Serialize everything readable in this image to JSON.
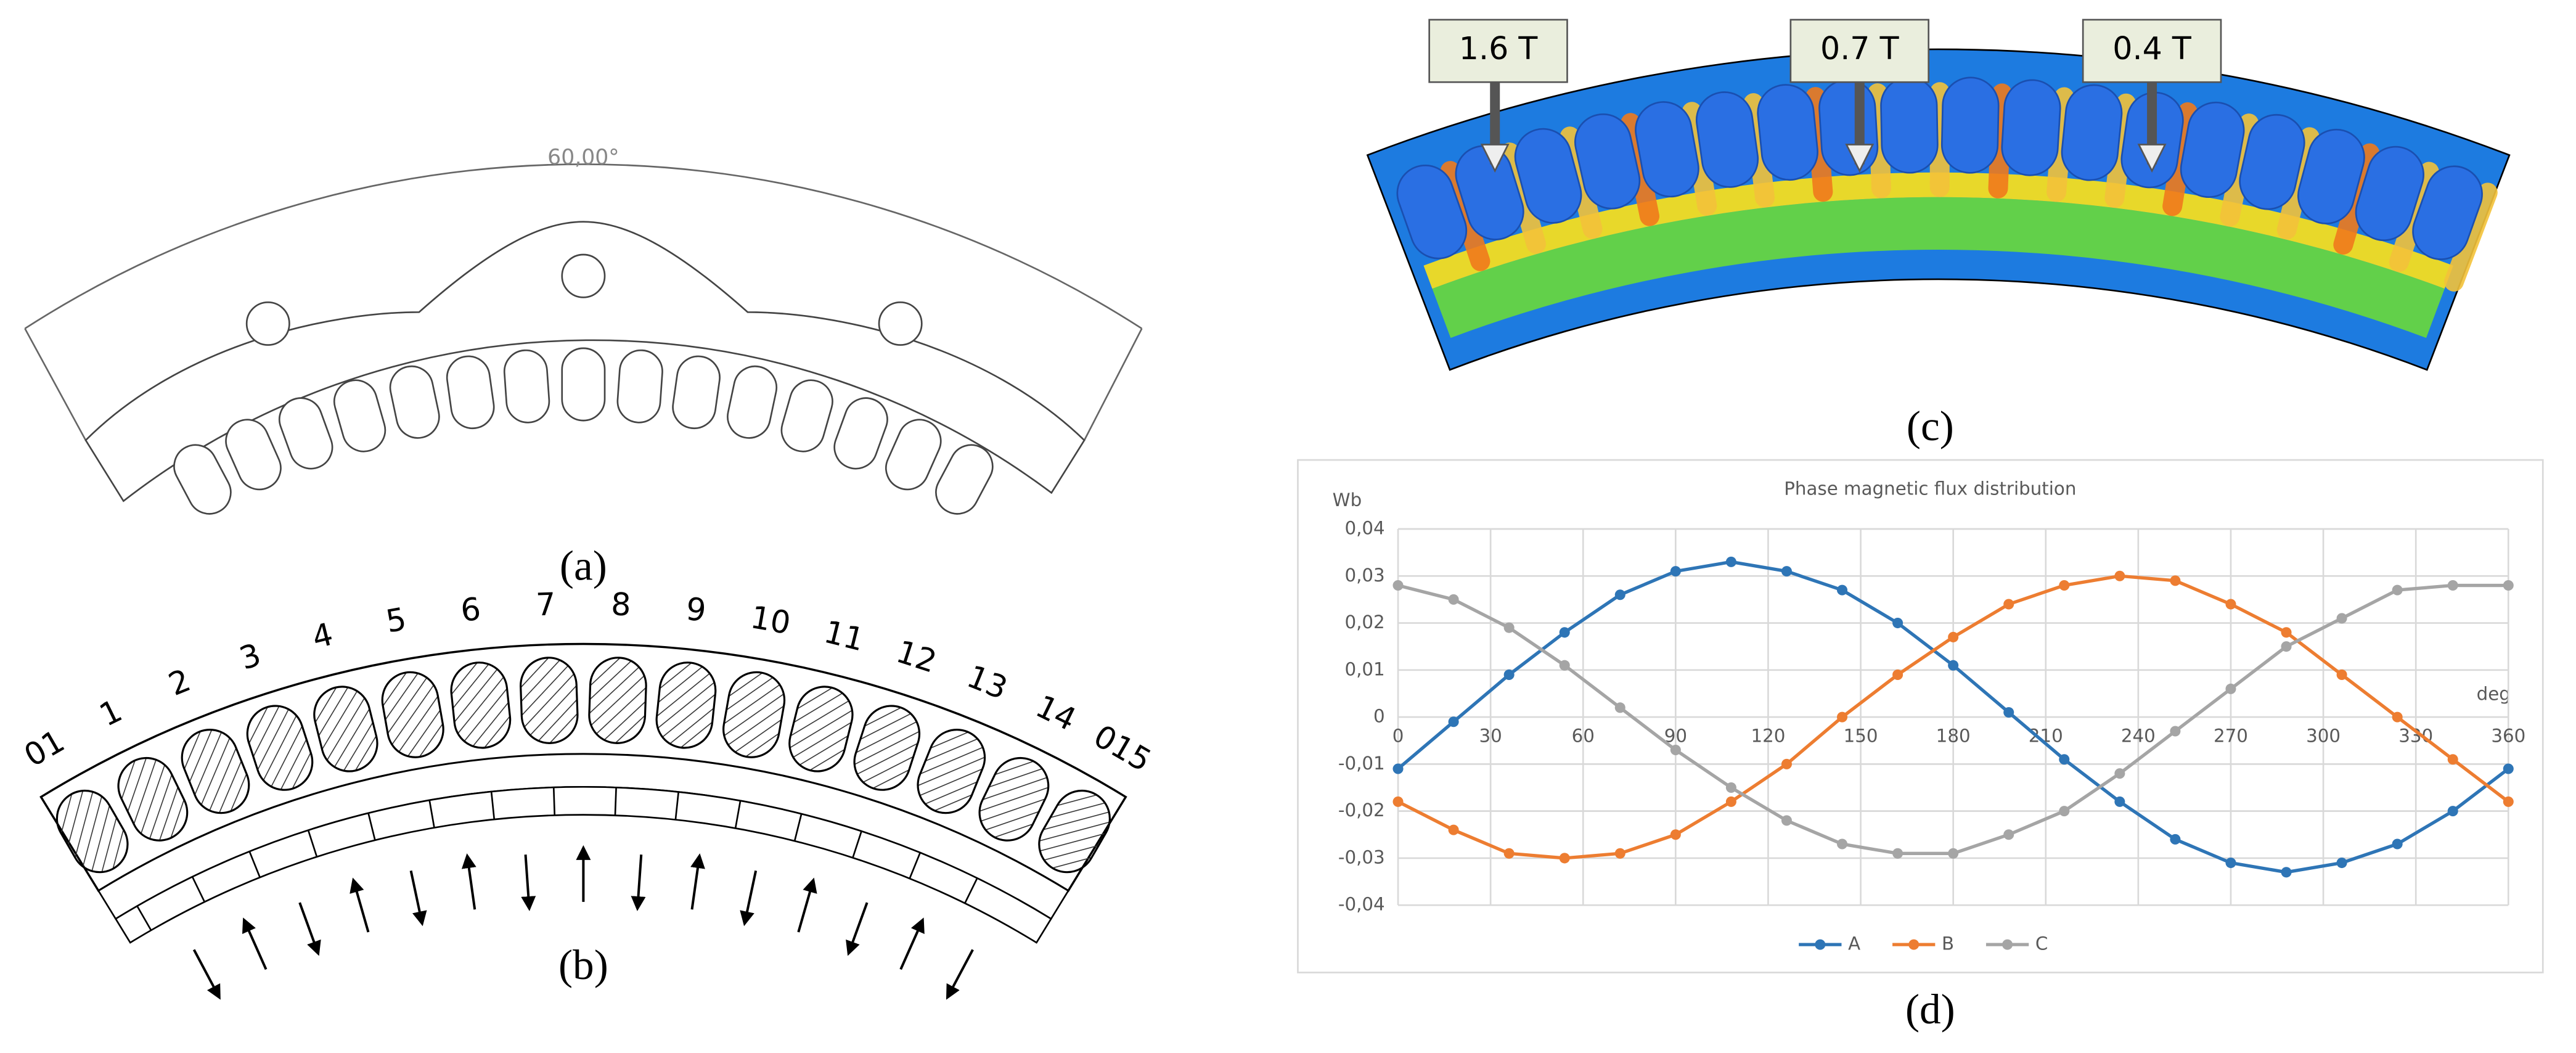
{
  "panels": [
    {
      "label": "(a)",
      "dimension": "60,00°"
    },
    {
      "label": "(b)",
      "slot_numbers": [
        "01",
        "1",
        "2",
        "3",
        "4",
        "5",
        "6",
        "7",
        "8",
        "9",
        "10",
        "11",
        "12",
        "13",
        "14",
        "015"
      ]
    },
    {
      "label": "(c)",
      "callouts": [
        "1.6 T",
        "0.7 T",
        "0.4 T"
      ]
    },
    {
      "label": "(d)"
    }
  ],
  "chart_data": {
    "type": "line",
    "title": "Phase magnetic flux distribution",
    "x_label": "deg",
    "y_label": "Wb",
    "x": [
      0,
      18,
      36,
      54,
      72,
      90,
      108,
      126,
      144,
      162,
      180,
      198,
      216,
      234,
      252,
      270,
      288,
      306,
      324,
      342,
      360
    ],
    "series": [
      {
        "name": "A",
        "color": "#2e75b6",
        "values": [
          -0.011,
          -0.001,
          0.009,
          0.018,
          0.026,
          0.031,
          0.033,
          0.031,
          0.027,
          0.02,
          0.011,
          0.001,
          -0.009,
          -0.018,
          -0.026,
          -0.031,
          -0.033,
          -0.031,
          -0.027,
          -0.02,
          -0.011
        ]
      },
      {
        "name": "B",
        "color": "#ed7d31",
        "values": [
          -0.018,
          -0.024,
          -0.029,
          -0.03,
          -0.029,
          -0.025,
          -0.018,
          -0.01,
          0.0,
          0.009,
          0.017,
          0.024,
          0.028,
          0.03,
          0.029,
          0.024,
          0.018,
          0.009,
          0.0,
          -0.009,
          -0.018
        ]
      },
      {
        "name": "C",
        "color": "#a5a5a5",
        "values": [
          0.028,
          0.025,
          0.019,
          0.011,
          0.002,
          -0.007,
          -0.015,
          -0.022,
          -0.027,
          -0.029,
          -0.029,
          -0.025,
          -0.02,
          -0.012,
          -0.003,
          0.006,
          0.015,
          0.021,
          0.027,
          0.028,
          0.028
        ]
      }
    ],
    "xlim": [
      0,
      360
    ],
    "xticks": [
      0,
      30,
      60,
      90,
      120,
      150,
      180,
      210,
      240,
      270,
      300,
      330,
      360
    ],
    "ylim": [
      -0.04,
      0.04
    ],
    "yticks": [
      {
        "value": 0.04,
        "label": "0,04"
      },
      {
        "value": 0.03,
        "label": "0,03"
      },
      {
        "value": 0.02,
        "label": "0,02"
      },
      {
        "value": 0.01,
        "label": "0,01"
      },
      0,
      {
        "value": -0.01,
        "label": "-0,01"
      },
      {
        "value": -0.02,
        "label": "-0,02"
      },
      {
        "value": -0.03,
        "label": "-0,03"
      },
      {
        "value": -0.04,
        "label": "-0,04"
      }
    ],
    "grid": true,
    "legend": "bottom"
  }
}
